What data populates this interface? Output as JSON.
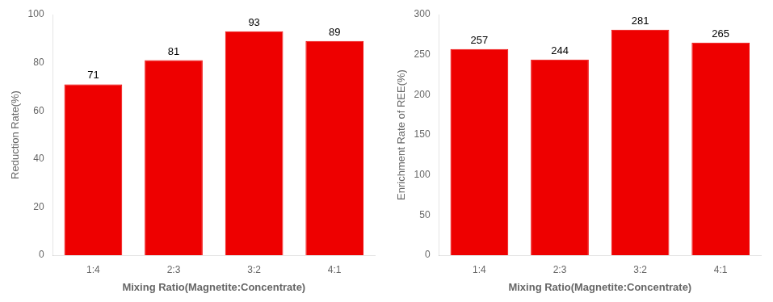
{
  "chart_data": [
    {
      "type": "bar",
      "categories": [
        "1:4",
        "2:3",
        "3:2",
        "4:1"
      ],
      "values": [
        71,
        81,
        93,
        89
      ],
      "color": "#ee0000",
      "xlabel": "Mixing Ratio(Magnetite:Concentrate)",
      "ylabel": "Reduction Rate(%)",
      "ylim": [
        0,
        100
      ],
      "yticks": [
        0,
        20,
        40,
        60,
        80,
        100
      ],
      "grid": false,
      "data_labels": true
    },
    {
      "type": "bar",
      "categories": [
        "1:4",
        "2:3",
        "3:2",
        "4:1"
      ],
      "values": [
        257,
        244,
        281,
        265
      ],
      "color": "#ee0000",
      "xlabel": "Mixing Ratio(Magnetite:Concentrate)",
      "ylabel": "Enrichment Rate of REE(%)",
      "ylim": [
        0,
        300
      ],
      "yticks": [
        0,
        50,
        100,
        150,
        200,
        250,
        300
      ],
      "grid": false,
      "data_labels": true
    }
  ]
}
